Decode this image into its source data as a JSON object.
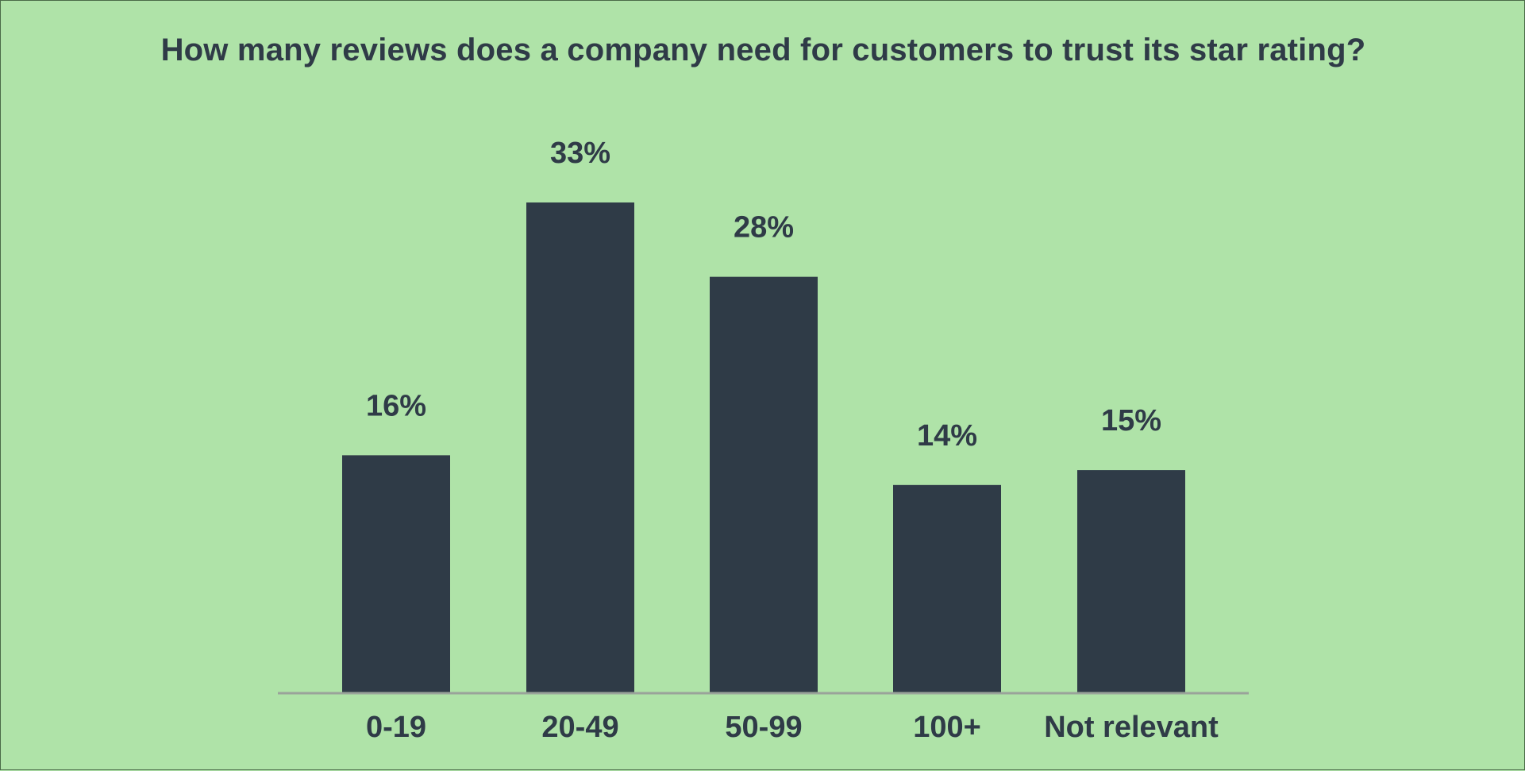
{
  "chart_data": {
    "type": "bar",
    "title": "How many reviews does a company need for customers to trust its star rating?",
    "categories": [
      "0-19",
      "20-49",
      "50-99",
      "100+",
      "Not relevant"
    ],
    "values": [
      16,
      33,
      28,
      14,
      15
    ],
    "value_labels": [
      "16%",
      "33%",
      "28%",
      "14%",
      "15%"
    ],
    "xlabel": "",
    "ylabel": "",
    "ylim": [
      0,
      33
    ],
    "grid": false,
    "legend": "none",
    "colors": {
      "background": "#afe3a8",
      "bar": "#2f3b47",
      "text": "#2f3b47",
      "axis": "#9aa39a"
    }
  }
}
